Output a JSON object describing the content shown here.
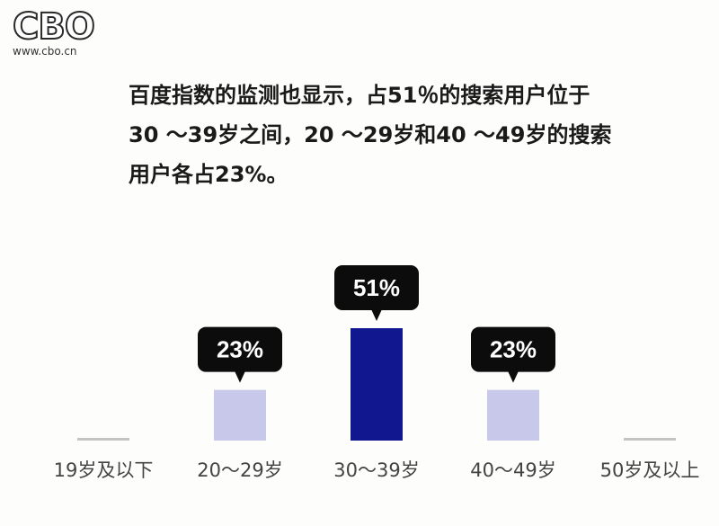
{
  "logo": {
    "text": "CBO",
    "site": "www.cbo.cn"
  },
  "description": {
    "lines": [
      "百度指数的监测也显示，占51％的搜索用户位于",
      "30 ～39岁之间，20 ～29岁和40 ～49岁的搜索",
      "用户各占23%。"
    ]
  },
  "chart_data": {
    "type": "bar",
    "categories": [
      "19岁及以下",
      "20～29岁",
      "30～39岁",
      "40～49岁",
      "50岁及以上"
    ],
    "values": [
      0,
      23,
      51,
      23,
      0
    ],
    "data_labels": [
      "",
      "23%",
      "51%",
      "23%",
      ""
    ],
    "ylim": [
      0,
      51
    ],
    "grid": false,
    "colors": {
      "bar_default": "#c8c9ea",
      "bar_highlight": "#11178f",
      "bar_zero": "#c4c4c4",
      "bubble": "#0c0c0c"
    },
    "highlight_index": 2
  }
}
